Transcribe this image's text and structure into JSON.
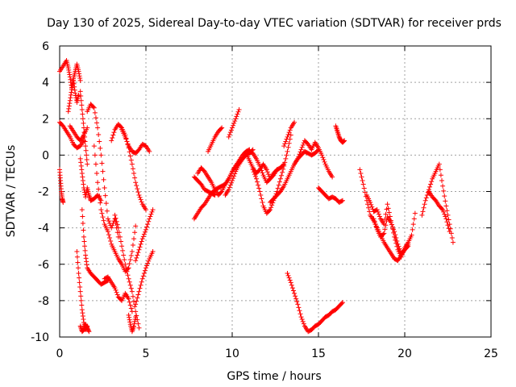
{
  "chart_data": {
    "type": "scatter",
    "title": "Day 130 of 2025, Sidereal Day-to-day VTEC variation (SDTVAR) for receiver prds",
    "xlabel": "GPS time / hours",
    "ylabel": "SDTVAR / TECUs",
    "xlim": [
      0,
      25
    ],
    "ylim": [
      -10,
      6
    ],
    "xticks": [
      0,
      5,
      10,
      15,
      20,
      25
    ],
    "yticks": [
      -10,
      -8,
      -6,
      -4,
      -2,
      0,
      2,
      4,
      6
    ],
    "grid": true,
    "marker": "+",
    "color": "#ff0000",
    "series": [
      {
        "name": "s1",
        "x": [
          0.0,
          0.2,
          0.4,
          0.5,
          0.6,
          0.7,
          0.8,
          0.9,
          1.0,
          1.1,
          1.2
        ],
        "y": [
          4.6,
          4.9,
          5.2,
          4.8,
          4.3,
          3.7,
          4.2,
          4.6,
          5.0,
          4.6,
          4.1
        ]
      },
      {
        "name": "s2",
        "x": [
          0.5,
          0.6,
          0.7,
          0.8,
          0.9,
          1.0,
          1.1
        ],
        "y": [
          2.4,
          3.0,
          3.6,
          4.1,
          3.4,
          2.9,
          3.3
        ]
      },
      {
        "name": "s3",
        "x": [
          0.0,
          0.2,
          0.4,
          0.6,
          0.8,
          1.0,
          1.2,
          1.4
        ],
        "y": [
          1.8,
          1.6,
          1.3,
          1.0,
          0.6,
          0.4,
          0.5,
          0.8
        ]
      },
      {
        "name": "s4",
        "x": [
          0.0,
          0.05,
          0.1,
          0.15,
          0.2
        ],
        "y": [
          -0.8,
          -1.4,
          -2.0,
          -2.4,
          -2.6
        ]
      },
      {
        "name": "s5",
        "x": [
          0.6,
          0.8,
          1.0,
          1.2,
          1.4,
          1.6
        ],
        "y": [
          1.6,
          1.3,
          1.0,
          0.8,
          1.1,
          1.5
        ]
      },
      {
        "name": "s6",
        "x": [
          1.2,
          1.3,
          1.4,
          1.5,
          1.6
        ],
        "y": [
          3.5,
          2.5,
          1.5,
          0.5,
          -0.5
        ]
      },
      {
        "name": "s7",
        "x": [
          1.2,
          1.3,
          1.4,
          1.5,
          1.6,
          1.7,
          1.8,
          2.0,
          2.2,
          2.4
        ],
        "y": [
          -0.2,
          -1.0,
          -1.8,
          -2.3,
          -1.8,
          -2.2,
          -2.5,
          -2.4,
          -2.2,
          -2.5
        ]
      },
      {
        "name": "s8",
        "x": [
          1.6,
          1.8,
          2.0,
          2.2,
          2.4,
          2.6,
          2.8,
          3.0,
          3.2,
          3.4
        ],
        "y": [
          2.4,
          2.8,
          2.6,
          1.5,
          0.0,
          -1.8,
          -3.5,
          -4.0,
          -3.5,
          -4.5
        ]
      },
      {
        "name": "s9",
        "x": [
          1.0,
          1.1,
          1.2,
          1.3,
          1.4,
          1.5,
          1.6
        ],
        "y": [
          -5.3,
          -6.5,
          -7.5,
          -8.5,
          -9.2,
          -9.6,
          -9.4
        ]
      },
      {
        "name": "s10",
        "x": [
          1.2,
          1.3,
          1.4,
          1.5,
          1.6,
          1.7
        ],
        "y": [
          -9.4,
          -9.7,
          -9.6,
          -9.3,
          -9.5,
          -9.7
        ]
      },
      {
        "name": "s11",
        "x": [
          1.3,
          1.4,
          1.5,
          1.6,
          1.8,
          2.0,
          2.2,
          2.4,
          2.6,
          2.8
        ],
        "y": [
          -3.0,
          -4.5,
          -5.5,
          -6.2,
          -6.5,
          -6.7,
          -6.9,
          -7.1,
          -7.0,
          -6.9
        ]
      },
      {
        "name": "s12",
        "x": [
          2.6,
          2.8,
          3.0,
          3.2,
          3.4,
          3.6,
          3.8,
          4.0,
          4.2
        ],
        "y": [
          -6.8,
          -6.7,
          -7.0,
          -7.3,
          -7.8,
          -8.0,
          -7.6,
          -7.9,
          -8.6
        ]
      },
      {
        "name": "s13",
        "x": [
          2.0,
          2.2,
          2.4,
          2.6,
          2.8,
          3.0,
          3.2,
          3.4,
          3.6,
          3.8,
          4.0,
          4.2,
          4.4
        ],
        "y": [
          0.5,
          -1.5,
          -3.0,
          -3.8,
          -4.2,
          -4.9,
          -5.3,
          -5.7,
          -6.0,
          -6.4,
          -6.2,
          -5.3,
          -3.9
        ]
      },
      {
        "name": "s14",
        "x": [
          3.0,
          3.2,
          3.4,
          3.6,
          3.8,
          4.0,
          4.2,
          4.4,
          4.6,
          4.8,
          5.0
        ],
        "y": [
          0.8,
          1.4,
          1.7,
          1.5,
          1.1,
          0.4,
          -0.5,
          -1.5,
          -2.2,
          -2.7,
          -3.0
        ]
      },
      {
        "name": "s15",
        "x": [
          3.6,
          3.8,
          4.0,
          4.2,
          4.4,
          4.6,
          4.8,
          5.0,
          5.2
        ],
        "y": [
          1.4,
          1.0,
          0.5,
          0.2,
          0.1,
          0.3,
          0.6,
          0.5,
          0.2
        ]
      },
      {
        "name": "s16",
        "x": [
          3.2,
          3.4,
          3.6,
          3.8,
          4.0,
          4.2,
          4.4,
          4.6
        ],
        "y": [
          -3.3,
          -4.0,
          -5.0,
          -6.0,
          -6.8,
          -7.5,
          -8.6,
          -9.5
        ]
      },
      {
        "name": "s17",
        "x": [
          4.0,
          4.1,
          4.2,
          4.3,
          4.4
        ],
        "y": [
          -8.8,
          -9.3,
          -9.7,
          -9.4,
          -8.9
        ]
      },
      {
        "name": "s18",
        "x": [
          4.4,
          4.6,
          4.8,
          5.0,
          5.2,
          5.4
        ],
        "y": [
          -8.2,
          -7.5,
          -6.8,
          -6.2,
          -5.7,
          -5.3
        ]
      },
      {
        "name": "s19",
        "x": [
          4.4,
          4.6,
          4.8,
          5.0,
          5.2,
          5.4
        ],
        "y": [
          -5.8,
          -5.2,
          -4.6,
          -4.1,
          -3.5,
          -3.0
        ]
      },
      {
        "name": "s20",
        "x": [
          7.8,
          8.0,
          8.2,
          8.4,
          8.6,
          8.8,
          9.0
        ],
        "y": [
          -1.2,
          -1.4,
          -1.6,
          -1.9,
          -2.0,
          -2.1,
          -2.2
        ]
      },
      {
        "name": "s21",
        "x": [
          8.0,
          8.2,
          8.4,
          8.6,
          8.8,
          9.0,
          9.2,
          9.4,
          9.6,
          9.8,
          10.0,
          10.2,
          10.4,
          10.6,
          10.8,
          11.0
        ],
        "y": [
          -1.0,
          -0.7,
          -0.9,
          -1.2,
          -1.5,
          -1.9,
          -2.2,
          -2.0,
          -1.6,
          -1.3,
          -0.9,
          -0.6,
          -0.3,
          0.0,
          0.2,
          0.3
        ]
      },
      {
        "name": "s22",
        "x": [
          8.6,
          8.8,
          9.0,
          9.2,
          9.4
        ],
        "y": [
          0.2,
          0.6,
          1.0,
          1.3,
          1.5
        ]
      },
      {
        "name": "s23",
        "x": [
          7.8,
          8.0,
          8.2,
          8.4,
          8.6,
          8.8,
          9.0,
          9.2,
          9.4,
          9.6,
          9.8,
          10.0,
          10.2,
          10.4,
          10.6,
          10.8,
          11.0,
          11.2
        ],
        "y": [
          -3.5,
          -3.2,
          -2.9,
          -2.7,
          -2.4,
          -2.1,
          -1.9,
          -1.8,
          -1.7,
          -1.6,
          -1.3,
          -0.9,
          -0.6,
          -0.4,
          -0.2,
          0.0,
          0.1,
          0.3
        ]
      },
      {
        "name": "s24",
        "x": [
          9.8,
          10.0,
          10.2,
          10.4
        ],
        "y": [
          1.0,
          1.5,
          2.0,
          2.5
        ]
      },
      {
        "name": "s25",
        "x": [
          9.6,
          9.8,
          10.0,
          10.2,
          10.4,
          10.6,
          10.8,
          11.0,
          11.2,
          11.4,
          11.6,
          11.8,
          12.0,
          12.2,
          12.4,
          12.6,
          12.8,
          13.0
        ],
        "y": [
          -2.2,
          -1.9,
          -1.4,
          -0.9,
          -0.5,
          -0.2,
          0.0,
          0.2,
          0.1,
          -0.2,
          -0.6,
          -1.1,
          -1.5,
          -1.3,
          -1.0,
          -0.8,
          -0.7,
          -0.5
        ]
      },
      {
        "name": "s26",
        "x": [
          11.2,
          11.4,
          11.6,
          11.8,
          12.0,
          12.2,
          12.4,
          12.6,
          12.8,
          13.0,
          13.2,
          13.4
        ],
        "y": [
          -0.8,
          -1.3,
          -2.0,
          -2.8,
          -3.2,
          -3.0,
          -2.5,
          -2.0,
          -1.3,
          -0.6,
          0.2,
          1.1
        ]
      },
      {
        "name": "s27",
        "x": [
          13.0,
          13.2,
          13.4,
          13.6
        ],
        "y": [
          0.5,
          1.0,
          1.5,
          1.8
        ]
      },
      {
        "name": "s28",
        "x": [
          10.8,
          11.0,
          11.2,
          11.4,
          11.6,
          11.8,
          12.0,
          12.2,
          12.4,
          12.6
        ],
        "y": [
          0.1,
          -0.3,
          -0.7,
          -1.0,
          -0.8,
          -0.5,
          -0.8,
          -1.3,
          -1.1,
          -0.8
        ]
      },
      {
        "name": "s29",
        "x": [
          12.2,
          12.4,
          12.6,
          12.8,
          13.0,
          13.2,
          13.4,
          13.6,
          13.8,
          14.0,
          14.2,
          14.4,
          14.6,
          14.8,
          15.0
        ],
        "y": [
          -2.6,
          -2.4,
          -2.2,
          -2.0,
          -1.7,
          -1.3,
          -0.9,
          -0.5,
          -0.2,
          0.0,
          0.2,
          0.1,
          0.0,
          0.1,
          0.3
        ]
      },
      {
        "name": "s30",
        "x": [
          13.6,
          13.8,
          14.0,
          14.2,
          14.4,
          14.6,
          14.8,
          15.0,
          15.2,
          15.4,
          15.6,
          15.8
        ],
        "y": [
          -0.5,
          -0.2,
          0.3,
          0.8,
          0.6,
          0.3,
          0.7,
          0.4,
          0.0,
          -0.5,
          -0.9,
          -1.2
        ]
      },
      {
        "name": "s31",
        "x": [
          15.0,
          15.2,
          15.4,
          15.6,
          15.8,
          16.0,
          16.2,
          16.4
        ],
        "y": [
          -1.8,
          -2.0,
          -2.2,
          -2.4,
          -2.3,
          -2.4,
          -2.6,
          -2.5
        ]
      },
      {
        "name": "s32",
        "x": [
          16.0,
          16.1,
          16.2,
          16.3,
          16.4,
          16.5
        ],
        "y": [
          1.6,
          1.3,
          1.0,
          0.8,
          0.7,
          0.8
        ]
      },
      {
        "name": "s33",
        "x": [
          13.2,
          13.4,
          13.6,
          13.8,
          14.0,
          14.2,
          14.4,
          14.6,
          14.8,
          15.0,
          15.2,
          15.4,
          15.6,
          15.8,
          16.0,
          16.2,
          16.4
        ],
        "y": [
          -6.5,
          -7.0,
          -7.6,
          -8.2,
          -8.9,
          -9.4,
          -9.7,
          -9.6,
          -9.4,
          -9.3,
          -9.1,
          -8.9,
          -8.8,
          -8.6,
          -8.5,
          -8.3,
          -8.1
        ]
      },
      {
        "name": "s34",
        "x": [
          17.4,
          17.6,
          17.8,
          18.0,
          18.2,
          18.4,
          18.6,
          18.8,
          19.0,
          19.2,
          19.4,
          19.6,
          19.8,
          20.0,
          20.2
        ],
        "y": [
          -0.8,
          -1.6,
          -2.5,
          -3.3,
          -3.6,
          -4.0,
          -4.4,
          -4.8,
          -5.1,
          -5.4,
          -5.7,
          -5.8,
          -5.5,
          -5.2,
          -4.9
        ]
      },
      {
        "name": "s35",
        "x": [
          17.8,
          18.0,
          18.2,
          18.4,
          18.6,
          18.8,
          19.0,
          19.2,
          19.4,
          19.6,
          19.8,
          20.0,
          20.2,
          20.4,
          20.6
        ],
        "y": [
          -2.2,
          -2.6,
          -3.1,
          -3.0,
          -3.5,
          -3.8,
          -2.7,
          -3.6,
          -4.5,
          -5.2,
          -5.6,
          -5.1,
          -4.8,
          -4.4,
          -3.2
        ]
      },
      {
        "name": "s36",
        "x": [
          18.2,
          18.4,
          18.6,
          18.8,
          19.0,
          19.2,
          19.4,
          19.6,
          19.8,
          20.0,
          20.2
        ],
        "y": [
          -3.5,
          -4.1,
          -4.5,
          -4.3,
          -3.4,
          -3.7,
          -4.2,
          -4.9,
          -5.4,
          -5.2,
          -5.0
        ]
      },
      {
        "name": "s37",
        "x": [
          21.0,
          21.2,
          21.4,
          21.6,
          21.8,
          22.0,
          22.2,
          22.4,
          22.6,
          22.8
        ],
        "y": [
          -3.3,
          -2.5,
          -1.9,
          -1.3,
          -0.9,
          -0.5,
          -1.7,
          -2.8,
          -3.8,
          -4.8
        ]
      },
      {
        "name": "s38",
        "x": [
          21.4,
          21.6,
          21.8,
          22.0,
          22.2,
          22.4,
          22.6
        ],
        "y": [
          -2.0,
          -2.3,
          -2.5,
          -2.8,
          -3.0,
          -3.5,
          -4.2
        ]
      }
    ]
  }
}
